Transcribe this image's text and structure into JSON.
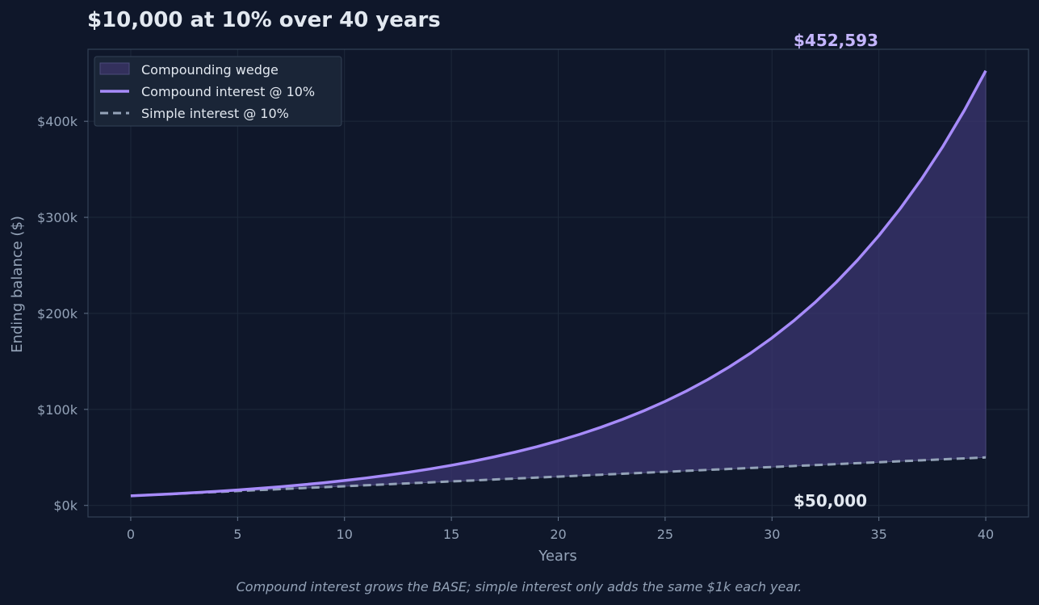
{
  "chart_data": {
    "type": "line",
    "title": "$10,000 at 10% over 40 years",
    "xlabel": "Years",
    "ylabel": "Ending balance ($)",
    "xlim": [
      -2,
      42
    ],
    "ylim": [
      -12000,
      475000
    ],
    "x_ticks": [
      0,
      5,
      10,
      15,
      20,
      25,
      30,
      35,
      40
    ],
    "x_tick_labels": [
      "0",
      "5",
      "10",
      "15",
      "20",
      "25",
      "30",
      "35",
      "40"
    ],
    "y_ticks": [
      0,
      100000,
      200000,
      300000,
      400000
    ],
    "y_tick_labels": [
      "$0k",
      "$100k",
      "$200k",
      "$300k",
      "$400k"
    ],
    "grid": true,
    "legend_position": "top-left",
    "x": [
      0,
      1,
      2,
      3,
      4,
      5,
      6,
      7,
      8,
      9,
      10,
      11,
      12,
      13,
      14,
      15,
      16,
      17,
      18,
      19,
      20,
      21,
      22,
      23,
      24,
      25,
      26,
      27,
      28,
      29,
      30,
      31,
      32,
      33,
      34,
      35,
      36,
      37,
      38,
      39,
      40
    ],
    "series": [
      {
        "name": "Compound interest @ 10%",
        "style": "solid",
        "color": "#a78bfa",
        "values": [
          10000,
          11000,
          12100,
          13310,
          14641,
          16105,
          17716,
          19487,
          21436,
          23579,
          25937,
          28531,
          31384,
          34523,
          37975,
          41772,
          45950,
          50545,
          55599,
          61159,
          67275,
          74002,
          81403,
          89543,
          98497,
          108347,
          119182,
          131100,
          144210,
          158631,
          174494,
          191943,
          211138,
          232252,
          255477,
          281024,
          309127,
          340039,
          374043,
          411448,
          452593
        ]
      },
      {
        "name": "Simple interest @ 10%",
        "style": "dashed",
        "color": "#94a3b8",
        "values": [
          10000,
          11000,
          12000,
          13000,
          14000,
          15000,
          16000,
          17000,
          18000,
          19000,
          20000,
          21000,
          22000,
          23000,
          24000,
          25000,
          26000,
          27000,
          28000,
          29000,
          30000,
          31000,
          32000,
          33000,
          34000,
          35000,
          36000,
          37000,
          38000,
          39000,
          40000,
          41000,
          42000,
          43000,
          44000,
          45000,
          46000,
          47000,
          48000,
          49000,
          50000
        ]
      }
    ],
    "fill_between": {
      "name": "Compounding wedge",
      "color": "#3b3670"
    },
    "annotations": [
      {
        "text": "$452,593",
        "x": 31,
        "y": 452593,
        "color": "#c4b5fd"
      },
      {
        "text": "$50,000",
        "x": 31,
        "y": 0,
        "color": "#e2e8f0"
      }
    ],
    "caption": "Compound interest grows the BASE; simple interest only adds the same $1k each year."
  }
}
